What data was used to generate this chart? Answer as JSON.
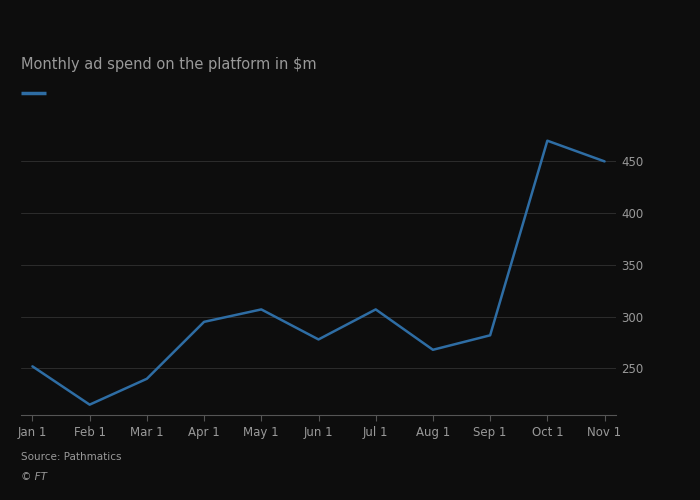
{
  "x_labels": [
    "Jan 1",
    "Feb 1",
    "Mar 1",
    "Apr 1",
    "May 1",
    "Jun 1",
    "Jul 1",
    "Aug 1",
    "Sep 1",
    "Oct 1",
    "Nov 1"
  ],
  "y_values": [
    252,
    215,
    240,
    295,
    307,
    278,
    307,
    268,
    282,
    470,
    450
  ],
  "line_color": "#2e6da4",
  "line_width": 1.8,
  "title": "Monthly ad spend on the platform in $m",
  "title_fontsize": 10.5,
  "ylabel_right_ticks": [
    250,
    300,
    350,
    400,
    450
  ],
  "ylim": [
    205,
    490
  ],
  "background_color": "#0d0d0d",
  "grid_color": "#ffffff",
  "grid_alpha": 0.18,
  "text_color": "#999999",
  "bottom_spine_color": "#555555",
  "source_text": "Source: Pathmatics",
  "ft_text": "© FT"
}
